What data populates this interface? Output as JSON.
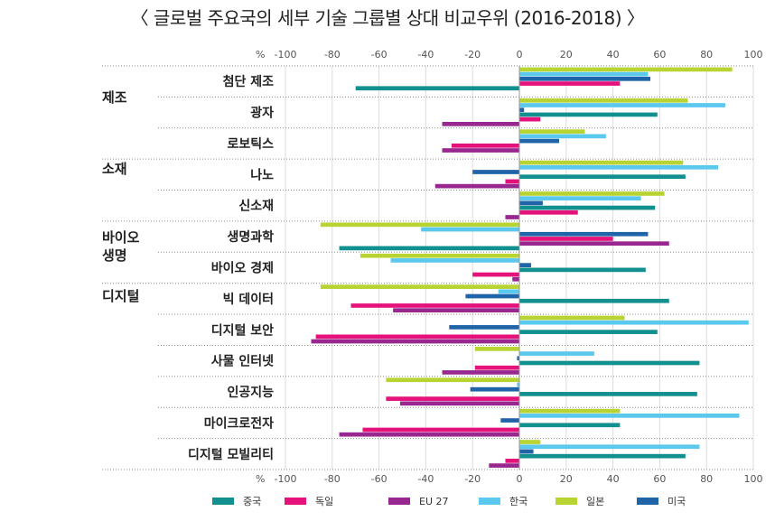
{
  "chart_data": {
    "type": "bar",
    "orientation": "horizontal",
    "title": "〈 글로벌 주요국의 세부 기술 그룹별 상대 비교우위 (2016-2018) 〉",
    "unit_label": "%",
    "xlim": [
      -100,
      100
    ],
    "ticks": [
      -100,
      -80,
      -60,
      -40,
      -20,
      0,
      20,
      40,
      60,
      80,
      100
    ],
    "tick_labels": [
      "-100",
      "-80",
      "-60",
      "-40",
      "-20",
      "0",
      "20",
      "40",
      "60",
      "80",
      "100"
    ],
    "groups": [
      {
        "label": "제조",
        "categories": [
          "첨단 제조",
          "광자",
          "로보틱스"
        ]
      },
      {
        "label": "소재",
        "categories": [
          "나노",
          "신소재"
        ]
      },
      {
        "label": "바이오\n생명",
        "categories": [
          "생명과학",
          "바이오 경제"
        ]
      },
      {
        "label": "디지털",
        "categories": [
          "빅 데이터",
          "디지털 보안",
          "사물 인터넷",
          "인공지능",
          "마이크로전자",
          "디지털 모빌리티"
        ]
      }
    ],
    "categories": [
      "첨단 제조",
      "광자",
      "로보틱스",
      "나노",
      "신소재",
      "생명과학",
      "바이오 경제",
      "빅 데이터",
      "디지털 보안",
      "사물 인터넷",
      "인공지능",
      "마이크로전자",
      "디지털 모빌리티"
    ],
    "series": [
      {
        "name": "일본",
        "color": "#b8d433",
        "values": [
          91,
          72,
          28,
          70,
          62,
          -85,
          -68,
          -85,
          45,
          -19,
          -57,
          43,
          9
        ]
      },
      {
        "name": "한국",
        "color": "#5bc8ee",
        "values": [
          55,
          88,
          37,
          85,
          52,
          -42,
          -55,
          -9,
          98,
          32,
          -1,
          94,
          77
        ]
      },
      {
        "name": "미국",
        "color": "#1f63a8",
        "values": [
          56,
          2,
          17,
          -20,
          10,
          55,
          5,
          -23,
          -30,
          -1,
          -21,
          -8,
          6
        ]
      },
      {
        "name": "중국",
        "color": "#12908f",
        "values": [
          null,
          59,
          null,
          71,
          58,
          null,
          54,
          64,
          59,
          77,
          76,
          43,
          71
        ]
      },
      {
        "name": "독일",
        "color": "#e5127c",
        "values": [
          43,
          9,
          -29,
          -6,
          25,
          40,
          -20,
          -72,
          -87,
          -19,
          -57,
          -67,
          -6
        ]
      },
      {
        "name": "EU 27",
        "color": "#98288f",
        "values": [
          null,
          -33,
          -33,
          -36,
          -6,
          64,
          -3,
          -54,
          -89,
          -33,
          -51,
          -77,
          -13
        ]
      },
      {
        "name": "중국",
        "color": "#12908f",
        "values": [
          -70,
          null,
          null,
          null,
          null,
          -77,
          null,
          null,
          null,
          null,
          null,
          null,
          null
        ]
      }
    ],
    "legend": [
      {
        "name": "중국",
        "color": "#12908f"
      },
      {
        "name": "독일",
        "color": "#e5127c"
      },
      {
        "name": "EU 27",
        "color": "#98288f"
      },
      {
        "name": "한국",
        "color": "#5bc8ee"
      },
      {
        "name": "일본",
        "color": "#b8d433"
      },
      {
        "name": "미국",
        "color": "#1f63a8"
      }
    ],
    "legend_position": "bottom"
  }
}
